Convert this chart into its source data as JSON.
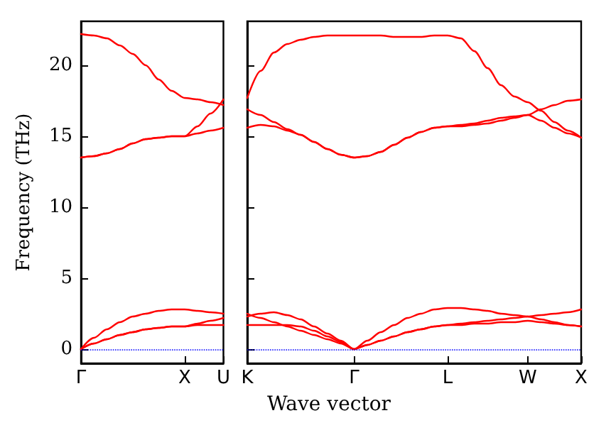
{
  "chart_data": [
    {
      "type": "line",
      "ylabel": "Frequency (THz)",
      "categories": [
        "Γ",
        null,
        null,
        null,
        null,
        null,
        null,
        null,
        "X",
        null,
        null,
        "U"
      ],
      "ylim": [
        -1,
        23.1
      ],
      "yticks": [
        0,
        5,
        10,
        15,
        20
      ],
      "grid": false,
      "marker": "none",
      "line_style": "solid",
      "ref_lines": [
        {
          "axis": "y",
          "value": 0,
          "color": "#0000ff",
          "line_style": "dotted"
        }
      ],
      "series": [
        {
          "color": "#ff0000",
          "values": [
            22.2,
            22.1,
            21.9,
            21.4,
            20.8,
            20.0,
            19.0,
            18.2,
            17.7,
            17.6,
            17.4,
            17.2
          ]
        },
        {
          "color": "#ff0000",
          "values": [
            13.5,
            13.6,
            13.8,
            14.1,
            14.5,
            14.8,
            14.9,
            15.0,
            15.0,
            15.7,
            16.6,
            17.6
          ]
        },
        {
          "color": "#ff0000",
          "values": [
            13.5,
            13.6,
            13.8,
            14.1,
            14.5,
            14.8,
            14.9,
            15.0,
            15.0,
            15.2,
            15.4,
            15.6
          ]
        },
        {
          "color": "#ff0000",
          "values": [
            0,
            0.8,
            1.4,
            1.9,
            2.3,
            2.5,
            2.7,
            2.8,
            2.8,
            2.7,
            2.6,
            2.5
          ]
        },
        {
          "color": "#ff0000",
          "values": [
            0,
            0.4,
            0.7,
            1.0,
            1.2,
            1.4,
            1.5,
            1.6,
            1.6,
            1.8,
            2.0,
            2.2
          ]
        },
        {
          "color": "#ff0000",
          "values": [
            0,
            0.4,
            0.7,
            1.0,
            1.2,
            1.4,
            1.5,
            1.6,
            1.6,
            1.7,
            1.7,
            1.7
          ]
        }
      ]
    },
    {
      "type": "line",
      "xlabel": "Wave vector",
      "categories": [
        "K",
        null,
        null,
        null,
        null,
        null,
        null,
        null,
        "Γ",
        null,
        null,
        null,
        null,
        null,
        null,
        "L",
        null,
        null,
        null,
        null,
        null,
        "W",
        null,
        null,
        null,
        "X"
      ],
      "ylim": [
        -1,
        23.1
      ],
      "yticks": [
        0,
        5,
        10,
        15,
        20
      ],
      "tick_labels": "x",
      "grid": false,
      "marker": "none",
      "line_style": "solid",
      "ref_lines": [
        {
          "axis": "y",
          "value": 0,
          "color": "#0000ff",
          "line_style": "dotted"
        }
      ],
      "series": [
        {
          "color": "#ff0000",
          "values": [
            17.7,
            19.6,
            20.9,
            21.5,
            21.8,
            22.0,
            22.1,
            22.1,
            22.1,
            22.1,
            22.1,
            22.0,
            22.0,
            22.0,
            22.1,
            22.1,
            21.9,
            21.0,
            19.8,
            18.6,
            17.8,
            17.4,
            16.8,
            16.0,
            15.4,
            14.9
          ]
        },
        {
          "color": "#ff0000",
          "values": [
            16.9,
            16.5,
            16.0,
            15.5,
            15.1,
            14.6,
            14.1,
            13.7,
            13.5,
            13.6,
            13.9,
            14.4,
            14.9,
            15.3,
            15.6,
            15.7,
            15.8,
            15.9,
            16.1,
            16.3,
            16.4,
            16.5,
            16.9,
            17.2,
            17.5,
            17.6
          ]
        },
        {
          "color": "#ff0000",
          "values": [
            15.6,
            15.8,
            15.7,
            15.4,
            15.1,
            14.6,
            14.1,
            13.7,
            13.5,
            13.6,
            13.9,
            14.4,
            14.9,
            15.3,
            15.6,
            15.7,
            15.7,
            15.8,
            15.9,
            16.1,
            16.3,
            16.5,
            16.1,
            15.6,
            15.2,
            14.9
          ]
        },
        {
          "color": "#ff0000",
          "values": [
            2.3,
            2.5,
            2.6,
            2.4,
            2.1,
            1.6,
            1.1,
            0.6,
            0,
            0.6,
            1.2,
            1.7,
            2.2,
            2.5,
            2.8,
            2.9,
            2.9,
            2.8,
            2.7,
            2.5,
            2.4,
            2.3,
            2.1,
            1.9,
            1.7,
            1.6
          ]
        },
        {
          "color": "#ff0000",
          "values": [
            2.5,
            2.2,
            1.9,
            1.6,
            1.3,
            1.0,
            0.7,
            0.4,
            0,
            0.3,
            0.6,
            0.9,
            1.2,
            1.4,
            1.6,
            1.7,
            1.8,
            1.9,
            2.0,
            2.1,
            2.2,
            2.3,
            2.4,
            2.5,
            2.6,
            2.8
          ]
        },
        {
          "color": "#ff0000",
          "values": [
            1.7,
            1.7,
            1.7,
            1.7,
            1.6,
            1.3,
            0.9,
            0.5,
            0,
            0.3,
            0.6,
            0.9,
            1.2,
            1.4,
            1.6,
            1.7,
            1.7,
            1.8,
            1.8,
            1.9,
            1.9,
            2.0,
            1.9,
            1.8,
            1.7,
            1.6
          ]
        }
      ]
    }
  ]
}
